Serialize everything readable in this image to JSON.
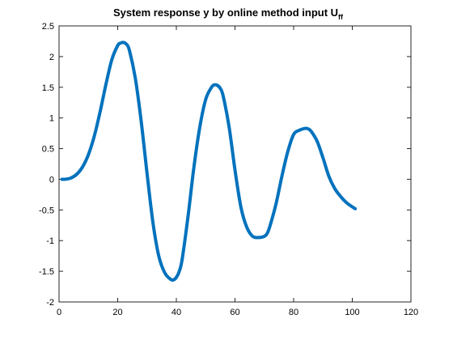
{
  "chart_data": {
    "type": "line",
    "title": "System response y by online method input U",
    "title_subscript": "ff",
    "xlabel": "",
    "ylabel": "",
    "xlim": [
      0,
      120
    ],
    "ylim": [
      -2,
      2.5
    ],
    "x_ticks": [
      0,
      20,
      40,
      60,
      80,
      100,
      120
    ],
    "y_ticks": [
      -2,
      -1.5,
      -1,
      -0.5,
      0,
      0.5,
      1,
      1.5,
      2,
      2.5
    ],
    "grid": false,
    "legend": "none",
    "line_color": "#0072BD",
    "series": [
      {
        "x": [
          1,
          2,
          4,
          6,
          8,
          10,
          12,
          14,
          16,
          18,
          20,
          21,
          22,
          23,
          24,
          26,
          28,
          30,
          32,
          34,
          36,
          38,
          39,
          40,
          41,
          42,
          44,
          46,
          48,
          50,
          52,
          53,
          54,
          55,
          56,
          58,
          60,
          62,
          64,
          66,
          68,
          70,
          71,
          72,
          74,
          76,
          78,
          80,
          82,
          84,
          85,
          86,
          88,
          90,
          92,
          94,
          96,
          98,
          100,
          101
        ],
        "values": [
          0.0,
          0.0,
          0.02,
          0.08,
          0.2,
          0.4,
          0.7,
          1.1,
          1.55,
          1.95,
          2.18,
          2.22,
          2.23,
          2.2,
          2.1,
          1.65,
          0.95,
          0.1,
          -0.7,
          -1.25,
          -1.52,
          -1.63,
          -1.64,
          -1.6,
          -1.5,
          -1.3,
          -0.6,
          0.2,
          0.85,
          1.3,
          1.5,
          1.54,
          1.53,
          1.48,
          1.35,
          0.85,
          0.15,
          -0.45,
          -0.78,
          -0.93,
          -0.95,
          -0.93,
          -0.88,
          -0.75,
          -0.4,
          0.05,
          0.45,
          0.73,
          0.8,
          0.83,
          0.82,
          0.78,
          0.62,
          0.35,
          0.05,
          -0.15,
          -0.28,
          -0.38,
          -0.45,
          -0.48
        ]
      }
    ]
  }
}
